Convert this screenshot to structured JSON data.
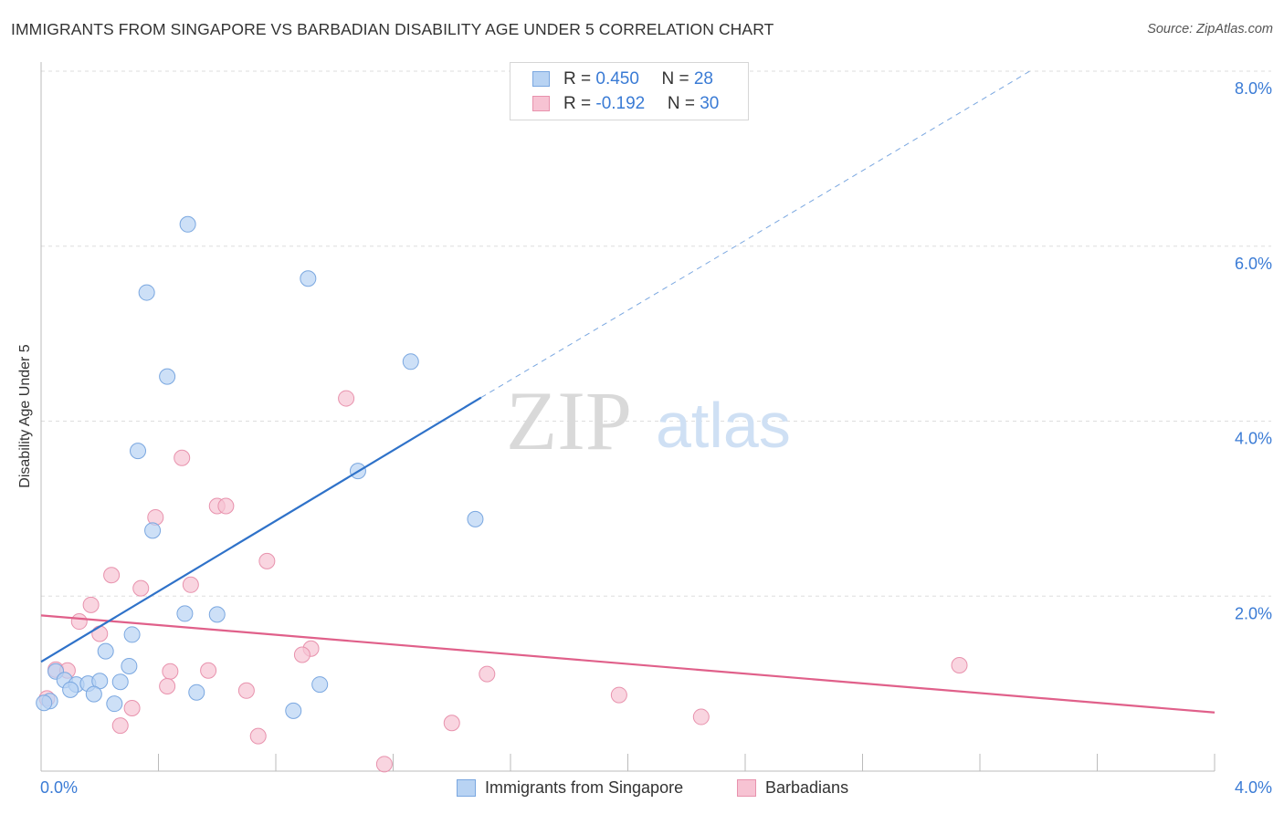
{
  "header": {
    "title": "IMMIGRANTS FROM SINGAPORE VS BARBADIAN DISABILITY AGE UNDER 5 CORRELATION CHART",
    "source": "Source: ZipAtlas.com"
  },
  "watermark": {
    "zip": "ZIP",
    "atlas": "atlas"
  },
  "legend": {
    "series": [
      {
        "r_label": "R = ",
        "r_value": "0.450",
        "n_label": "N = ",
        "n_value": "28"
      },
      {
        "r_label": "R = ",
        "r_value": "-0.192",
        "n_label": "N = ",
        "n_value": "30"
      }
    ]
  },
  "colors": {
    "blue_fill": "#b8d3f3",
    "blue_stroke": "#7aa7e0",
    "blue_line": "#2f72c9",
    "pink_fill": "#f7c3d3",
    "pink_stroke": "#e892ad",
    "pink_line": "#e0608a",
    "tick_text": "#3a7bd5",
    "grid": "#dddddd"
  },
  "chart_data": {
    "type": "scatter",
    "title": "IMMIGRANTS FROM SINGAPORE VS BARBADIAN DISABILITY AGE UNDER 5 CORRELATION CHART",
    "xlabel": "",
    "ylabel": "Disability Age Under 5",
    "xlim": [
      0,
      4
    ],
    "ylim": [
      0,
      8
    ],
    "x_tick_labels": [
      "0.0%",
      "4.0%"
    ],
    "y_ticks": [
      2,
      4,
      6,
      8
    ],
    "y_tick_labels": [
      "2.0%",
      "4.0%",
      "6.0%",
      "8.0%"
    ],
    "grid": true,
    "legend_position": "top-center",
    "series": [
      {
        "name": "Immigrants from Singapore",
        "r": 0.45,
        "n": 28,
        "points": [
          [
            0.5,
            6.25
          ],
          [
            0.36,
            5.47
          ],
          [
            0.91,
            5.63
          ],
          [
            0.43,
            4.51
          ],
          [
            1.26,
            4.68
          ],
          [
            0.33,
            3.66
          ],
          [
            1.08,
            3.43
          ],
          [
            1.48,
            2.88
          ],
          [
            0.38,
            2.75
          ],
          [
            0.49,
            1.8
          ],
          [
            0.6,
            1.79
          ],
          [
            0.31,
            1.56
          ],
          [
            0.22,
            1.37
          ],
          [
            0.3,
            1.2
          ],
          [
            0.05,
            1.14
          ],
          [
            0.08,
            1.04
          ],
          [
            0.12,
            0.99
          ],
          [
            0.16,
            1.0
          ],
          [
            0.2,
            1.03
          ],
          [
            0.27,
            1.02
          ],
          [
            0.1,
            0.93
          ],
          [
            0.18,
            0.88
          ],
          [
            0.53,
            0.9
          ],
          [
            0.95,
            0.99
          ],
          [
            0.25,
            0.77
          ],
          [
            0.86,
            0.69
          ],
          [
            0.03,
            0.8
          ],
          [
            0.01,
            0.78
          ]
        ],
        "trend": {
          "x": [
            0,
            1.5
          ],
          "y": [
            1.25,
            4.27
          ]
        },
        "trend_dashed": {
          "x": [
            1.5,
            3.37
          ],
          "y": [
            4.27,
            8.0
          ]
        }
      },
      {
        "name": "Barbadians",
        "r": -0.192,
        "n": 30,
        "points": [
          [
            1.04,
            4.26
          ],
          [
            0.48,
            3.58
          ],
          [
            0.6,
            3.03
          ],
          [
            0.63,
            3.03
          ],
          [
            0.39,
            2.9
          ],
          [
            0.77,
            2.4
          ],
          [
            0.24,
            2.24
          ],
          [
            0.34,
            2.09
          ],
          [
            0.51,
            2.13
          ],
          [
            0.17,
            1.9
          ],
          [
            0.13,
            1.71
          ],
          [
            0.2,
            1.57
          ],
          [
            0.92,
            1.4
          ],
          [
            0.89,
            1.33
          ],
          [
            0.05,
            1.16
          ],
          [
            0.09,
            1.15
          ],
          [
            0.44,
            1.14
          ],
          [
            0.57,
            1.15
          ],
          [
            1.52,
            1.11
          ],
          [
            3.13,
            1.21
          ],
          [
            0.43,
            0.97
          ],
          [
            0.7,
            0.92
          ],
          [
            1.97,
            0.87
          ],
          [
            0.31,
            0.72
          ],
          [
            2.25,
            0.62
          ],
          [
            1.4,
            0.55
          ],
          [
            0.27,
            0.52
          ],
          [
            0.74,
            0.4
          ],
          [
            1.17,
            0.08
          ],
          [
            0.02,
            0.83
          ]
        ],
        "trend": {
          "x": [
            0,
            4
          ],
          "y": [
            1.78,
            0.67
          ]
        }
      }
    ]
  },
  "bottom_legend": {
    "items": [
      {
        "label": "Immigrants from Singapore"
      },
      {
        "label": "Barbadians"
      }
    ]
  }
}
